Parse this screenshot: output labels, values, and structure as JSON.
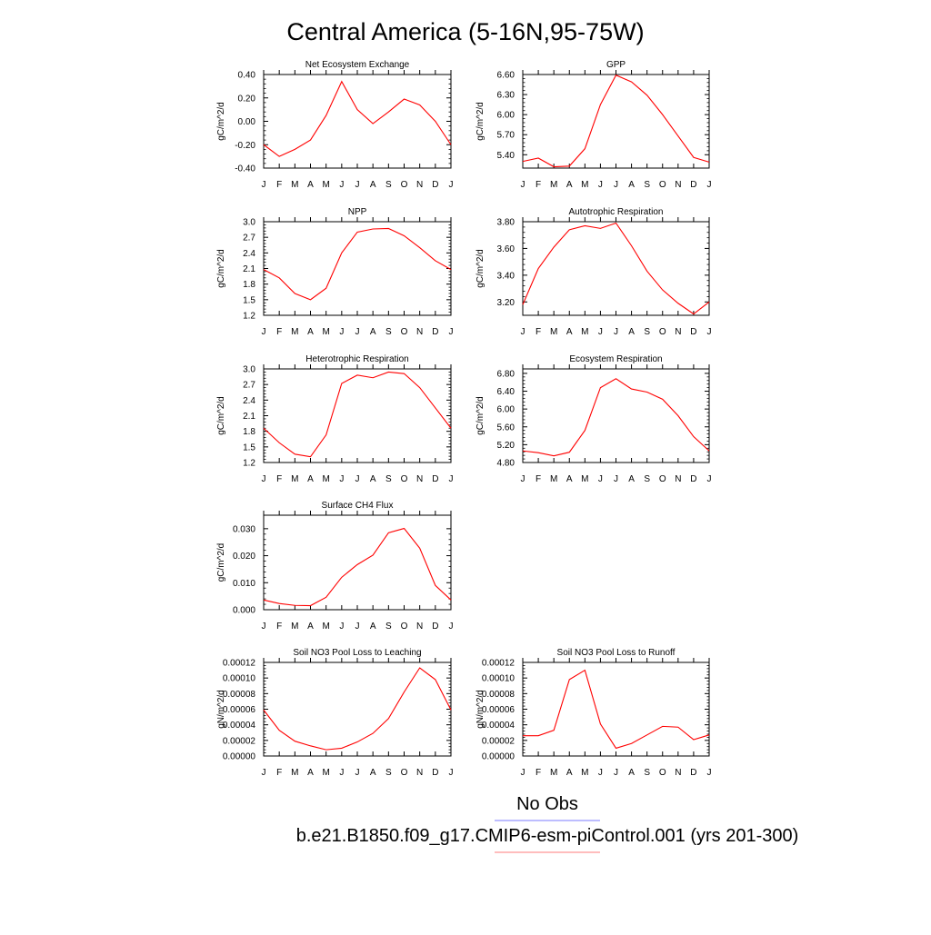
{
  "figure": {
    "title": "Central America (5-16N,95-75W)",
    "legend": [
      {
        "label": "No Obs",
        "color": "#7b7bff"
      },
      {
        "label": "b.e21.B1850.f09_g17.CMIP6-esm-piControl.001 (yrs 201-300)",
        "color": "#ff7b7b"
      }
    ],
    "line_color": "#ff0000"
  },
  "chart_data": [
    {
      "type": "line",
      "title": "Net Ecosystem Exchange",
      "ylabel": "gC/m^2/d",
      "categories": [
        "J",
        "F",
        "M",
        "A",
        "M",
        "J",
        "J",
        "A",
        "S",
        "O",
        "N",
        "D",
        "J"
      ],
      "ylim": [
        -0.4,
        0.4
      ],
      "yticks": [
        "0.40",
        "0.20",
        "0.00",
        "-0.20",
        "-0.40"
      ],
      "values": [
        -0.2,
        -0.3,
        -0.24,
        -0.16,
        0.05,
        0.34,
        0.1,
        -0.02,
        0.08,
        0.19,
        0.14,
        0.0,
        -0.2
      ]
    },
    {
      "type": "line",
      "title": "GPP",
      "ylabel": "gC/m^2/d",
      "categories": [
        "J",
        "F",
        "M",
        "A",
        "M",
        "J",
        "J",
        "A",
        "S",
        "O",
        "N",
        "D",
        "J"
      ],
      "ylim": [
        5.2,
        6.6
      ],
      "yticks": [
        "6.60",
        "6.30",
        "6.00",
        "5.70",
        "5.40"
      ],
      "values": [
        5.3,
        5.35,
        5.22,
        5.23,
        5.49,
        6.15,
        6.59,
        6.49,
        6.29,
        6.0,
        5.68,
        5.36,
        5.29
      ]
    },
    {
      "type": "line",
      "title": "NPP",
      "ylabel": "gC/m^2/d",
      "categories": [
        "J",
        "F",
        "M",
        "A",
        "M",
        "J",
        "J",
        "A",
        "S",
        "O",
        "N",
        "D",
        "J"
      ],
      "ylim": [
        1.2,
        3.0
      ],
      "yticks": [
        "3.0",
        "2.7",
        "2.4",
        "2.1",
        "1.8",
        "1.5",
        "1.2"
      ],
      "values": [
        2.08,
        1.92,
        1.62,
        1.5,
        1.72,
        2.4,
        2.8,
        2.86,
        2.87,
        2.73,
        2.5,
        2.25,
        2.08
      ]
    },
    {
      "type": "line",
      "title": "Autotrophic Respiration",
      "ylabel": "gC/m^2/d",
      "categories": [
        "J",
        "F",
        "M",
        "A",
        "M",
        "J",
        "J",
        "A",
        "S",
        "O",
        "N",
        "D",
        "J"
      ],
      "ylim": [
        3.1,
        3.8
      ],
      "yticks": [
        "3.80",
        "3.60",
        "3.40",
        "3.20"
      ],
      "values": [
        3.18,
        3.45,
        3.61,
        3.74,
        3.77,
        3.75,
        3.79,
        3.62,
        3.43,
        3.29,
        3.19,
        3.11,
        3.2
      ]
    },
    {
      "type": "line",
      "title": "Heterotrophic Respiration",
      "ylabel": "gC/m^2/d",
      "categories": [
        "J",
        "F",
        "M",
        "A",
        "M",
        "J",
        "J",
        "A",
        "S",
        "O",
        "N",
        "D",
        "J"
      ],
      "ylim": [
        1.2,
        3.0
      ],
      "yticks": [
        "3.0",
        "2.7",
        "2.4",
        "2.1",
        "1.8",
        "1.5",
        "1.2"
      ],
      "values": [
        1.86,
        1.58,
        1.36,
        1.31,
        1.73,
        2.72,
        2.88,
        2.83,
        2.94,
        2.91,
        2.64,
        2.25,
        1.86
      ]
    },
    {
      "type": "line",
      "title": "Ecosystem Respiration",
      "ylabel": "gC/m^2/d",
      "categories": [
        "J",
        "F",
        "M",
        "A",
        "M",
        "J",
        "J",
        "A",
        "S",
        "O",
        "N",
        "D",
        "J"
      ],
      "ylim": [
        4.8,
        6.9
      ],
      "yticks": [
        "6.80",
        "6.40",
        "6.00",
        "5.60",
        "5.20",
        "4.80"
      ],
      "values": [
        5.06,
        5.02,
        4.95,
        5.03,
        5.52,
        6.48,
        6.68,
        6.45,
        6.38,
        6.22,
        5.85,
        5.38,
        5.06
      ]
    },
    {
      "type": "line",
      "title": "Surface CH4 Flux",
      "ylabel": "gC/m^2/d",
      "categories": [
        "J",
        "F",
        "M",
        "A",
        "M",
        "J",
        "J",
        "A",
        "S",
        "O",
        "N",
        "D",
        "J"
      ],
      "ylim": [
        0.0,
        0.035
      ],
      "yticks": [
        "0.030",
        "0.020",
        "0.010",
        "0.000"
      ],
      "values": [
        0.0036,
        0.0023,
        0.0016,
        0.0015,
        0.0046,
        0.012,
        0.0167,
        0.0202,
        0.0285,
        0.0301,
        0.0228,
        0.009,
        0.0036
      ]
    },
    {
      "type": "line",
      "title": "Soil NO3 Pool Loss to Leaching",
      "ylabel": "gN/m^2/d",
      "categories": [
        "J",
        "F",
        "M",
        "A",
        "M",
        "J",
        "J",
        "A",
        "S",
        "O",
        "N",
        "D",
        "J"
      ],
      "ylim": [
        0.0,
        0.00012
      ],
      "yticks": [
        "0.00012",
        "0.00010",
        "0.00008",
        "0.00006",
        "0.00004",
        "0.00002",
        "0.00000"
      ],
      "values": [
        5.9e-05,
        3.3e-05,
        1.9e-05,
        1.3e-05,
        8e-06,
        1e-05,
        1.8e-05,
        2.9e-05,
        4.8e-05,
        8.2e-05,
        0.000113,
        9.8e-05,
        5.9e-05
      ]
    },
    {
      "type": "line",
      "title": "Soil NO3 Pool Loss to Runoff",
      "ylabel": "gN/m^2/d",
      "categories": [
        "J",
        "F",
        "M",
        "A",
        "M",
        "J",
        "J",
        "A",
        "S",
        "O",
        "N",
        "D",
        "J"
      ],
      "ylim": [
        0.0,
        0.00012
      ],
      "yticks": [
        "0.00012",
        "0.00010",
        "0.00008",
        "0.00006",
        "0.00004",
        "0.00002",
        "0.00000"
      ],
      "values": [
        2.6e-05,
        2.6e-05,
        3.3e-05,
        9.8e-05,
        0.00011,
        4.1e-05,
        1e-05,
        1.6e-05,
        2.7e-05,
        3.8e-05,
        3.7e-05,
        2.1e-05,
        2.7e-05
      ]
    }
  ]
}
